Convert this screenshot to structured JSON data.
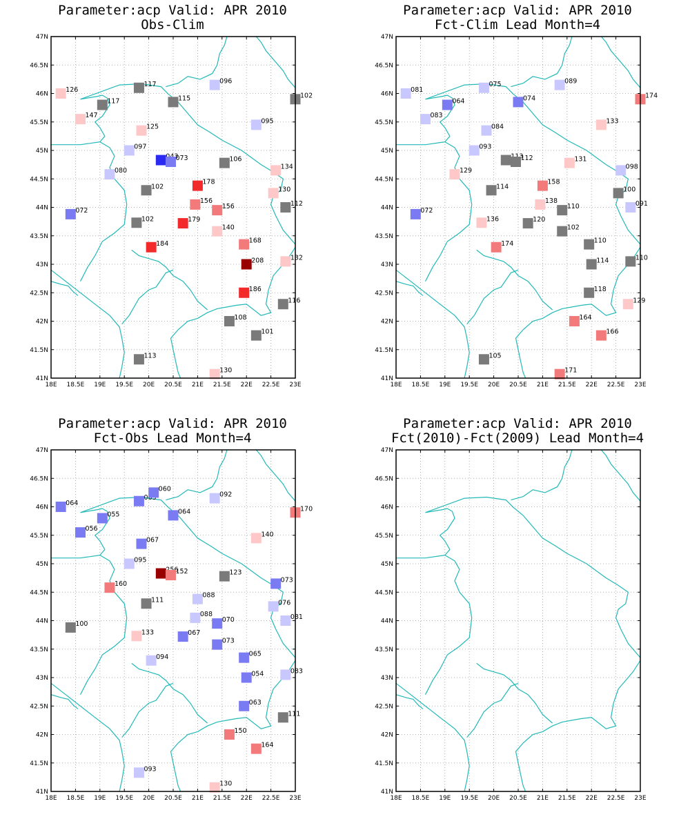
{
  "colors": {
    "coast": "#21b8b8",
    "grid": "#9a9a9a",
    "gray": "#7a7a7a",
    "dark_red": "#990000",
    "red": "#f22a2a",
    "med_red": "#f27a7a",
    "light_red": "#ffc8c8",
    "light_blue": "#c8c8ff",
    "med_blue": "#7a7af2",
    "blue": "#2a2af2"
  },
  "axes": {
    "x_ticks": [
      "18E",
      "18.5E",
      "19E",
      "19.5E",
      "20E",
      "20.5E",
      "21E",
      "21.5E",
      "22E",
      "22.5E",
      "23E"
    ],
    "y_ticks": [
      "41N",
      "41.5N",
      "42N",
      "42.5N",
      "43N",
      "43.5N",
      "44N",
      "44.5N",
      "45N",
      "45.5N",
      "46N",
      "46.5N",
      "47N"
    ],
    "xlim": [
      18,
      23
    ],
    "ylim": [
      41,
      47
    ],
    "grid": true
  },
  "chart_data": [
    {
      "type": "scatter",
      "title": "Parameter:acp Valid: APR 2010",
      "subtitle": "Obs-Clim",
      "points": [
        {
          "lon": 18.2,
          "lat": 46.0,
          "label": "126",
          "color": "light_red"
        },
        {
          "lon": 19.8,
          "lat": 46.1,
          "label": "117",
          "color": "gray"
        },
        {
          "lon": 21.35,
          "lat": 46.15,
          "label": "096",
          "color": "light_blue"
        },
        {
          "lon": 19.05,
          "lat": 45.8,
          "label": "117",
          "color": "gray"
        },
        {
          "lon": 20.5,
          "lat": 45.85,
          "label": "115",
          "color": "gray"
        },
        {
          "lon": 23.0,
          "lat": 45.9,
          "label": "102",
          "color": "gray"
        },
        {
          "lon": 18.6,
          "lat": 45.55,
          "label": "147",
          "color": "light_red"
        },
        {
          "lon": 19.85,
          "lat": 45.35,
          "label": "125",
          "color": "light_red"
        },
        {
          "lon": 22.2,
          "lat": 45.45,
          "label": "095",
          "color": "light_blue"
        },
        {
          "lon": 19.6,
          "lat": 45.0,
          "label": "097",
          "color": "light_blue"
        },
        {
          "lon": 20.25,
          "lat": 44.83,
          "label": "043",
          "color": "blue"
        },
        {
          "lon": 20.45,
          "lat": 44.8,
          "label": "073",
          "color": "med_blue"
        },
        {
          "lon": 21.55,
          "lat": 44.78,
          "label": "106",
          "color": "gray"
        },
        {
          "lon": 22.6,
          "lat": 44.65,
          "label": "134",
          "color": "light_red"
        },
        {
          "lon": 19.2,
          "lat": 44.58,
          "label": "080",
          "color": "light_blue"
        },
        {
          "lon": 21.0,
          "lat": 44.38,
          "label": "178",
          "color": "red"
        },
        {
          "lon": 19.95,
          "lat": 44.3,
          "label": "102",
          "color": "gray"
        },
        {
          "lon": 22.55,
          "lat": 44.25,
          "label": "130",
          "color": "light_red"
        },
        {
          "lon": 20.95,
          "lat": 44.05,
          "label": "156",
          "color": "med_red"
        },
        {
          "lon": 21.4,
          "lat": 43.95,
          "label": "156",
          "color": "med_red"
        },
        {
          "lon": 22.8,
          "lat": 44.0,
          "label": "112",
          "color": "gray"
        },
        {
          "lon": 18.4,
          "lat": 43.88,
          "label": "072",
          "color": "med_blue"
        },
        {
          "lon": 19.75,
          "lat": 43.73,
          "label": "102",
          "color": "gray"
        },
        {
          "lon": 20.7,
          "lat": 43.72,
          "label": "179",
          "color": "red"
        },
        {
          "lon": 21.4,
          "lat": 43.58,
          "label": "140",
          "color": "light_red"
        },
        {
          "lon": 21.95,
          "lat": 43.35,
          "label": "168",
          "color": "med_red"
        },
        {
          "lon": 20.05,
          "lat": 43.3,
          "label": "184",
          "color": "red"
        },
        {
          "lon": 22.0,
          "lat": 43.0,
          "label": "208",
          "color": "dark_red"
        },
        {
          "lon": 22.8,
          "lat": 43.05,
          "label": "132",
          "color": "light_red"
        },
        {
          "lon": 21.95,
          "lat": 42.5,
          "label": "186",
          "color": "red"
        },
        {
          "lon": 22.75,
          "lat": 42.3,
          "label": "116",
          "color": "gray"
        },
        {
          "lon": 21.65,
          "lat": 42.0,
          "label": "108",
          "color": "gray"
        },
        {
          "lon": 22.2,
          "lat": 41.75,
          "label": "101",
          "color": "gray"
        },
        {
          "lon": 19.8,
          "lat": 41.33,
          "label": "113",
          "color": "gray"
        },
        {
          "lon": 21.35,
          "lat": 41.07,
          "label": "130",
          "color": "light_red"
        }
      ]
    },
    {
      "type": "scatter",
      "title": "Parameter:acp Valid: APR 2010",
      "subtitle": "Fct-Clim Lead Month=4",
      "points": [
        {
          "lon": 18.2,
          "lat": 46.0,
          "label": "081",
          "color": "light_blue"
        },
        {
          "lon": 19.8,
          "lat": 46.1,
          "label": "075",
          "color": "light_blue"
        },
        {
          "lon": 21.35,
          "lat": 46.15,
          "label": "089",
          "color": "light_blue"
        },
        {
          "lon": 19.05,
          "lat": 45.8,
          "label": "064",
          "color": "med_blue"
        },
        {
          "lon": 20.5,
          "lat": 45.85,
          "label": "074",
          "color": "med_blue"
        },
        {
          "lon": 23.0,
          "lat": 45.9,
          "label": "174",
          "color": "med_red"
        },
        {
          "lon": 18.6,
          "lat": 45.55,
          "label": "083",
          "color": "light_blue"
        },
        {
          "lon": 19.85,
          "lat": 45.35,
          "label": "084",
          "color": "light_blue"
        },
        {
          "lon": 22.2,
          "lat": 45.45,
          "label": "133",
          "color": "light_red"
        },
        {
          "lon": 19.6,
          "lat": 45.0,
          "label": "093",
          "color": "light_blue"
        },
        {
          "lon": 20.25,
          "lat": 44.83,
          "label": "113",
          "color": "gray"
        },
        {
          "lon": 20.45,
          "lat": 44.8,
          "label": "112",
          "color": "gray"
        },
        {
          "lon": 21.55,
          "lat": 44.78,
          "label": "131",
          "color": "light_red"
        },
        {
          "lon": 22.6,
          "lat": 44.65,
          "label": "098",
          "color": "light_blue"
        },
        {
          "lon": 19.2,
          "lat": 44.58,
          "label": "129",
          "color": "light_red"
        },
        {
          "lon": 21.0,
          "lat": 44.38,
          "label": "158",
          "color": "med_red"
        },
        {
          "lon": 19.95,
          "lat": 44.3,
          "label": "114",
          "color": "gray"
        },
        {
          "lon": 22.55,
          "lat": 44.25,
          "label": "100",
          "color": "gray"
        },
        {
          "lon": 20.95,
          "lat": 44.05,
          "label": "138",
          "color": "light_red"
        },
        {
          "lon": 21.4,
          "lat": 43.95,
          "label": "110",
          "color": "gray"
        },
        {
          "lon": 22.8,
          "lat": 44.0,
          "label": "091",
          "color": "light_blue"
        },
        {
          "lon": 18.4,
          "lat": 43.88,
          "label": "072",
          "color": "med_blue"
        },
        {
          "lon": 19.75,
          "lat": 43.73,
          "label": "136",
          "color": "light_red"
        },
        {
          "lon": 20.7,
          "lat": 43.72,
          "label": "120",
          "color": "gray"
        },
        {
          "lon": 21.4,
          "lat": 43.58,
          "label": "102",
          "color": "gray"
        },
        {
          "lon": 21.95,
          "lat": 43.35,
          "label": "110",
          "color": "gray"
        },
        {
          "lon": 20.05,
          "lat": 43.3,
          "label": "174",
          "color": "med_red"
        },
        {
          "lon": 22.0,
          "lat": 43.0,
          "label": "114",
          "color": "gray"
        },
        {
          "lon": 22.8,
          "lat": 43.05,
          "label": "110",
          "color": "gray"
        },
        {
          "lon": 21.95,
          "lat": 42.5,
          "label": "118",
          "color": "gray"
        },
        {
          "lon": 22.75,
          "lat": 42.3,
          "label": "129",
          "color": "light_red"
        },
        {
          "lon": 21.65,
          "lat": 42.0,
          "label": "164",
          "color": "med_red"
        },
        {
          "lon": 22.2,
          "lat": 41.75,
          "label": "166",
          "color": "med_red"
        },
        {
          "lon": 19.8,
          "lat": 41.33,
          "label": "105",
          "color": "gray"
        },
        {
          "lon": 21.35,
          "lat": 41.07,
          "label": "171",
          "color": "med_red"
        }
      ]
    },
    {
      "type": "scatter",
      "title": "Parameter:acp Valid: APR 2010",
      "subtitle": "Fct-Obs Lead Month=4",
      "points": [
        {
          "lon": 18.2,
          "lat": 46.0,
          "label": "064",
          "color": "med_blue"
        },
        {
          "lon": 19.8,
          "lat": 46.1,
          "label": "063",
          "color": "med_blue"
        },
        {
          "lon": 20.1,
          "lat": 46.25,
          "label": "060",
          "color": "med_blue"
        },
        {
          "lon": 21.35,
          "lat": 46.15,
          "label": "092",
          "color": "light_blue"
        },
        {
          "lon": 19.05,
          "lat": 45.8,
          "label": "055",
          "color": "med_blue"
        },
        {
          "lon": 20.5,
          "lat": 45.85,
          "label": "064",
          "color": "med_blue"
        },
        {
          "lon": 23.0,
          "lat": 45.9,
          "label": "170",
          "color": "med_red"
        },
        {
          "lon": 18.6,
          "lat": 45.55,
          "label": "056",
          "color": "med_blue"
        },
        {
          "lon": 19.85,
          "lat": 45.35,
          "label": "067",
          "color": "med_blue"
        },
        {
          "lon": 22.2,
          "lat": 45.45,
          "label": "140",
          "color": "light_red"
        },
        {
          "lon": 19.6,
          "lat": 45.0,
          "label": "095",
          "color": "light_blue"
        },
        {
          "lon": 20.25,
          "lat": 44.83,
          "label": "256",
          "color": "dark_red"
        },
        {
          "lon": 20.45,
          "lat": 44.8,
          "label": "152",
          "color": "med_red"
        },
        {
          "lon": 21.55,
          "lat": 44.78,
          "label": "123",
          "color": "gray"
        },
        {
          "lon": 22.6,
          "lat": 44.65,
          "label": "073",
          "color": "med_blue"
        },
        {
          "lon": 19.2,
          "lat": 44.58,
          "label": "160",
          "color": "med_red"
        },
        {
          "lon": 21.0,
          "lat": 44.38,
          "label": "088",
          "color": "light_blue"
        },
        {
          "lon": 19.95,
          "lat": 44.3,
          "label": "111",
          "color": "gray"
        },
        {
          "lon": 22.55,
          "lat": 44.25,
          "label": "076",
          "color": "light_blue"
        },
        {
          "lon": 20.95,
          "lat": 44.05,
          "label": "088",
          "color": "light_blue"
        },
        {
          "lon": 21.4,
          "lat": 43.95,
          "label": "070",
          "color": "med_blue"
        },
        {
          "lon": 22.8,
          "lat": 44.0,
          "label": "081",
          "color": "light_blue"
        },
        {
          "lon": 18.4,
          "lat": 43.88,
          "label": "100",
          "color": "gray"
        },
        {
          "lon": 19.75,
          "lat": 43.73,
          "label": "133",
          "color": "light_red"
        },
        {
          "lon": 20.7,
          "lat": 43.72,
          "label": "067",
          "color": "med_blue"
        },
        {
          "lon": 21.4,
          "lat": 43.58,
          "label": "073",
          "color": "med_blue"
        },
        {
          "lon": 21.95,
          "lat": 43.35,
          "label": "065",
          "color": "med_blue"
        },
        {
          "lon": 20.05,
          "lat": 43.3,
          "label": "094",
          "color": "light_blue"
        },
        {
          "lon": 22.0,
          "lat": 43.0,
          "label": "054",
          "color": "med_blue"
        },
        {
          "lon": 22.8,
          "lat": 43.05,
          "label": "083",
          "color": "light_blue"
        },
        {
          "lon": 21.95,
          "lat": 42.5,
          "label": "063",
          "color": "med_blue"
        },
        {
          "lon": 22.75,
          "lat": 42.3,
          "label": "111",
          "color": "gray"
        },
        {
          "lon": 21.65,
          "lat": 42.0,
          "label": "150",
          "color": "med_red"
        },
        {
          "lon": 22.2,
          "lat": 41.75,
          "label": "164",
          "color": "med_red"
        },
        {
          "lon": 19.8,
          "lat": 41.33,
          "label": "093",
          "color": "light_blue"
        },
        {
          "lon": 21.35,
          "lat": 41.07,
          "label": "130",
          "color": "light_red"
        }
      ]
    },
    {
      "type": "scatter",
      "title": "Parameter:acp Valid: APR 2010",
      "subtitle": "Fct(2010)-Fct(2009) Lead Month=4",
      "points": []
    }
  ]
}
